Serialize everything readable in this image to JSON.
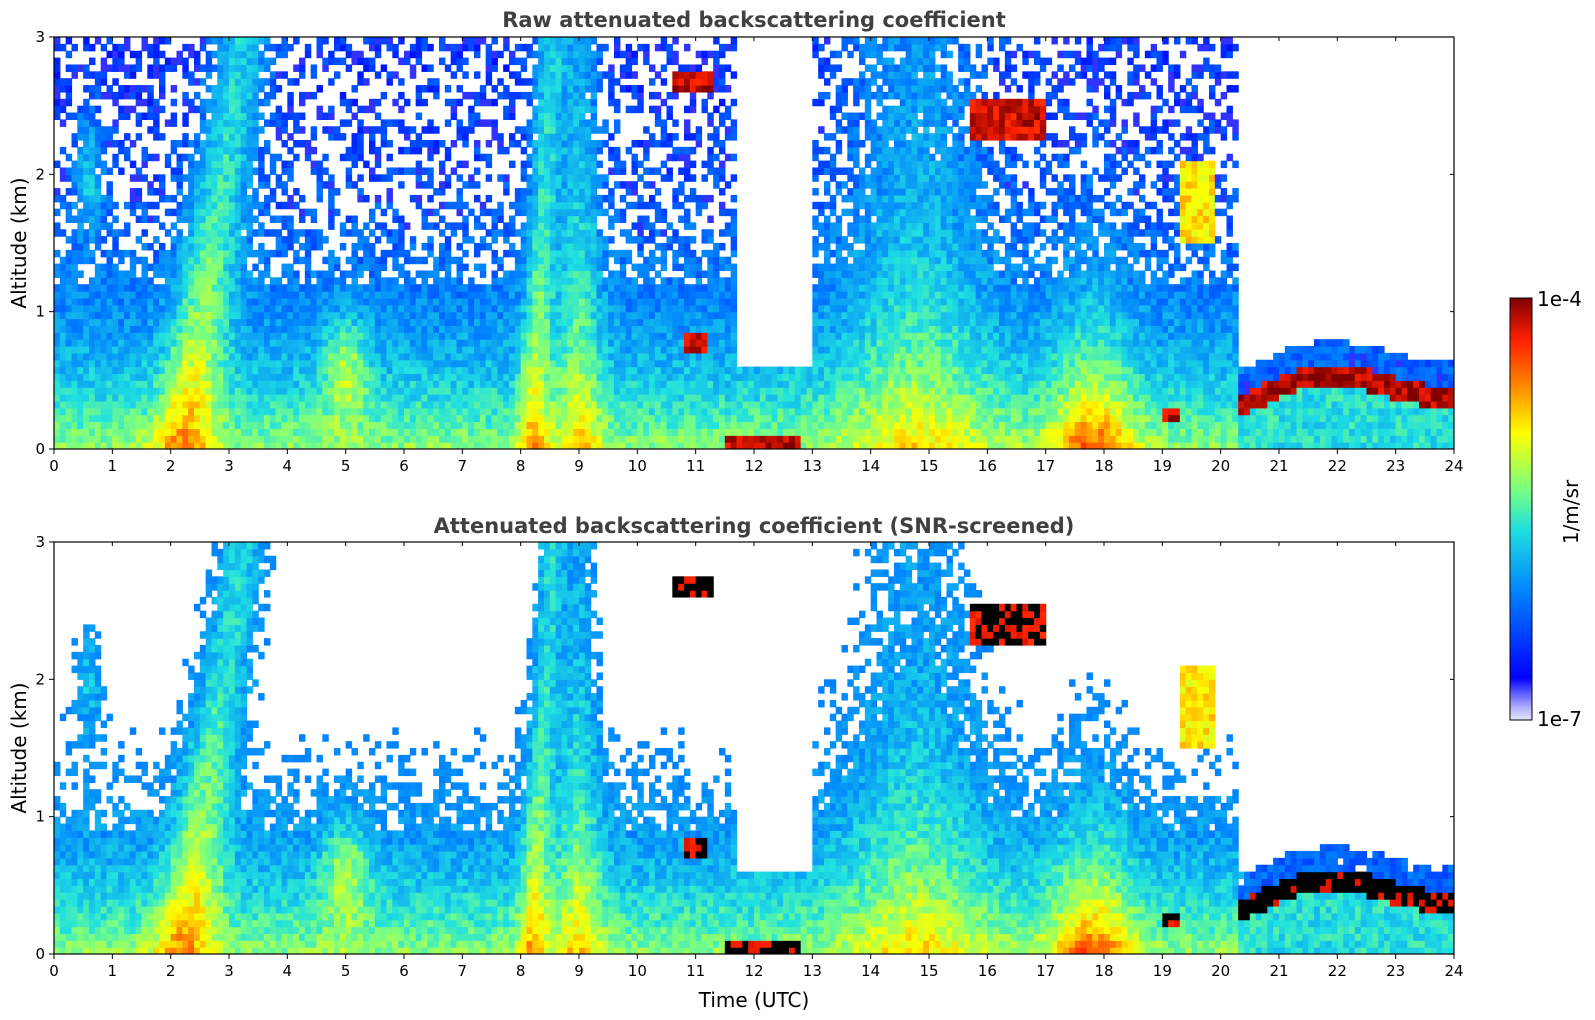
{
  "chart_data": [
    {
      "type": "heatmap",
      "title": "Raw attenuated backscattering coefficient",
      "xlabel": "",
      "ylabel": "Altitude (km)",
      "xlim": [
        0,
        24
      ],
      "ylim": [
        0,
        3
      ],
      "xticks": [
        0,
        1,
        2,
        3,
        4,
        5,
        6,
        7,
        8,
        9,
        10,
        11,
        12,
        13,
        14,
        15,
        16,
        17,
        18,
        19,
        20,
        21,
        22,
        23,
        24
      ],
      "yticks": [
        0,
        1,
        2,
        3
      ],
      "colormap": "jet",
      "screened": false
    },
    {
      "type": "heatmap",
      "title": "Attenuated backscattering coefficient (SNR-screened)",
      "xlabel": "Time (UTC)",
      "ylabel": "Altitude (km)",
      "xlim": [
        0,
        24
      ],
      "ylim": [
        0,
        3
      ],
      "xticks": [
        0,
        1,
        2,
        3,
        4,
        5,
        6,
        7,
        8,
        9,
        10,
        11,
        12,
        13,
        14,
        15,
        16,
        17,
        18,
        19,
        20,
        21,
        22,
        23,
        24
      ],
      "yticks": [
        0,
        1,
        2,
        3
      ],
      "colormap": "jet",
      "screened": true
    }
  ],
  "colorbar": {
    "label": "1/m/sr",
    "max_label": "1e-4",
    "min_label": "1e-7",
    "scale": "log",
    "range": [
      1e-07,
      0.0001
    ]
  }
}
